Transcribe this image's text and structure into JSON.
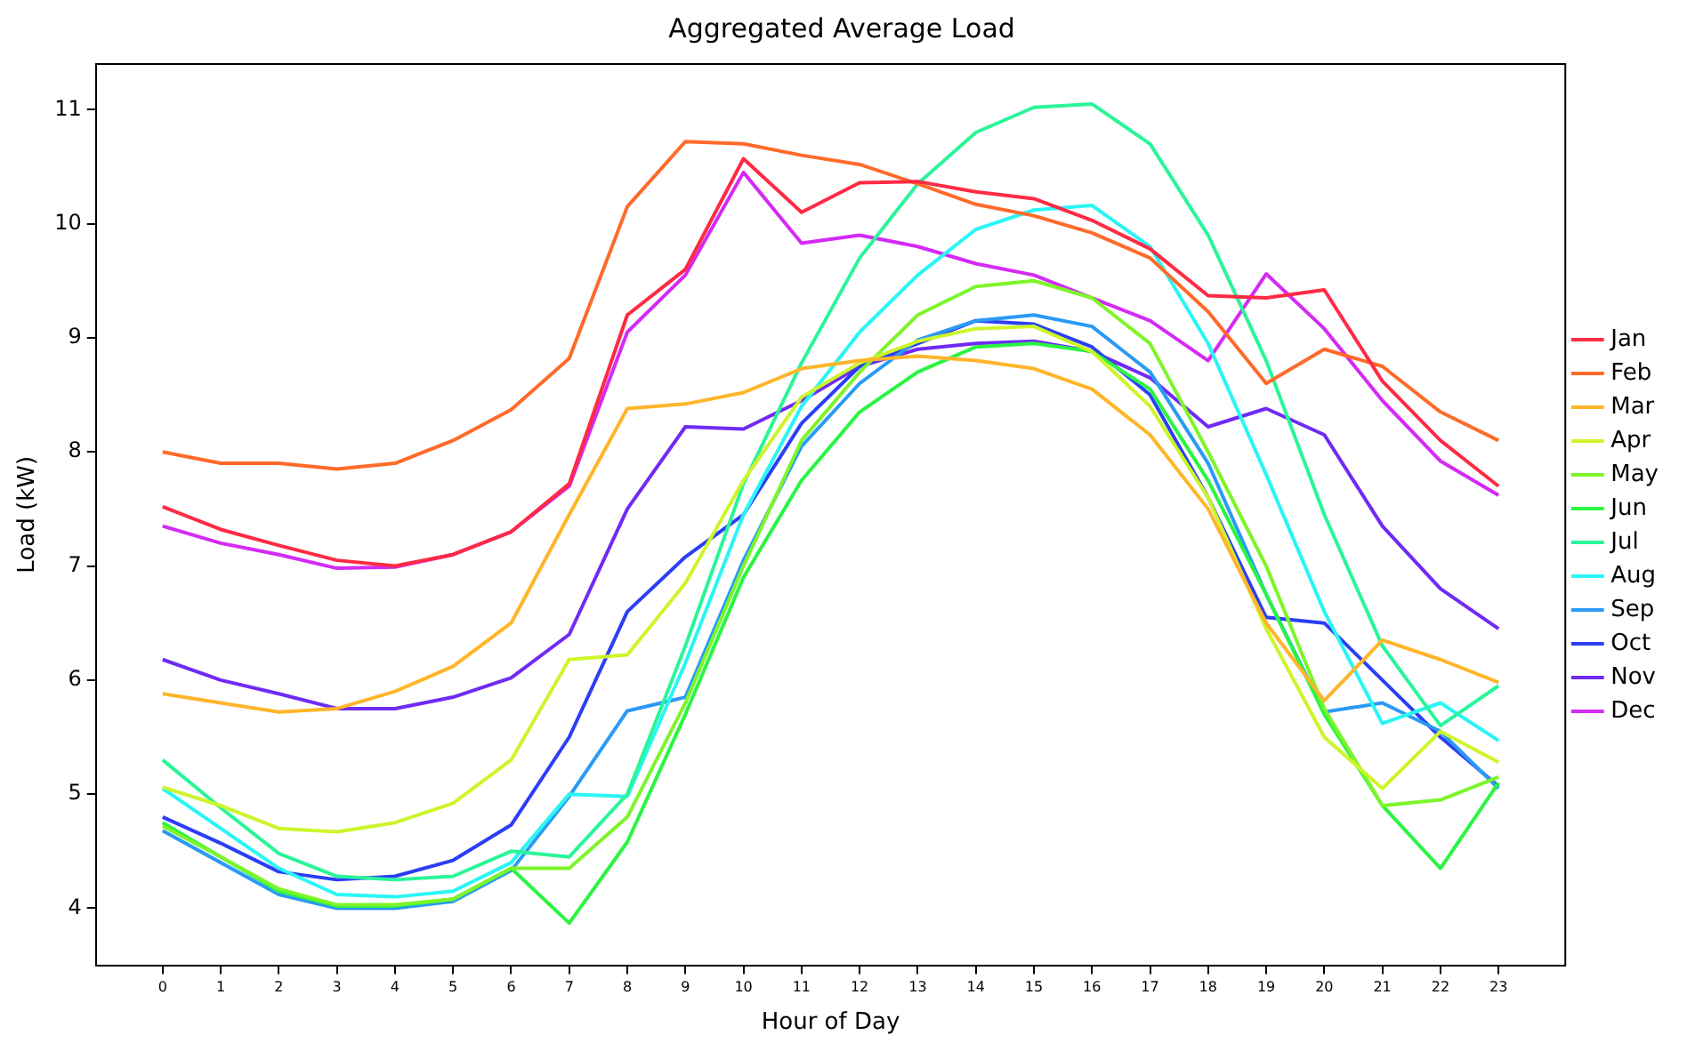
{
  "chart_data": {
    "type": "line",
    "title": "Aggregated Average Load",
    "xlabel": "Hour of Day",
    "ylabel": "Load (kW)",
    "x": [
      0,
      1,
      2,
      3,
      4,
      5,
      6,
      7,
      8,
      9,
      10,
      11,
      12,
      13,
      14,
      15,
      16,
      17,
      18,
      19,
      20,
      21,
      22,
      23
    ],
    "xlim": [
      -1.15,
      24.15
    ],
    "xticks": [
      0,
      1,
      2,
      3,
      4,
      5,
      6,
      7,
      8,
      9,
      10,
      11,
      12,
      13,
      14,
      15,
      16,
      17,
      18,
      19,
      20,
      21,
      22,
      23
    ],
    "ylim": [
      3.5,
      11.4
    ],
    "yticks": [
      4,
      5,
      6,
      7,
      8,
      9,
      10,
      11
    ],
    "grid": false,
    "legend": "right",
    "marker": "none",
    "line_style": "solid",
    "series": [
      {
        "name": "Jan",
        "color": "#ff2a44",
        "values": [
          7.52,
          7.32,
          7.18,
          7.05,
          7.0,
          7.1,
          7.3,
          7.72,
          9.2,
          9.6,
          10.57,
          10.1,
          10.36,
          10.37,
          10.28,
          10.22,
          10.03,
          9.78,
          9.37,
          9.35,
          9.42,
          8.62,
          8.1,
          7.7
        ]
      },
      {
        "name": "Feb",
        "color": "#ff6a2a",
        "values": [
          8.0,
          7.9,
          7.9,
          7.85,
          7.9,
          8.1,
          8.37,
          8.82,
          10.15,
          10.72,
          10.7,
          10.6,
          10.52,
          10.35,
          10.17,
          10.07,
          9.92,
          9.7,
          9.23,
          8.6,
          8.9,
          8.75,
          8.35,
          8.1
        ]
      },
      {
        "name": "Mar",
        "color": "#ffb52a",
        "values": [
          5.88,
          5.8,
          5.72,
          5.75,
          5.9,
          6.12,
          6.5,
          7.45,
          8.38,
          8.42,
          8.52,
          8.73,
          8.8,
          8.84,
          8.8,
          8.73,
          8.55,
          8.15,
          7.5,
          6.5,
          5.82,
          6.35,
          6.18,
          5.98
        ]
      },
      {
        "name": "Apr",
        "color": "#cdf52a",
        "values": [
          5.06,
          4.9,
          4.7,
          4.67,
          4.75,
          4.92,
          5.3,
          6.18,
          6.22,
          6.85,
          7.75,
          8.48,
          8.78,
          8.97,
          9.08,
          9.1,
          8.88,
          8.4,
          7.6,
          6.45,
          5.5,
          5.05,
          5.55,
          5.28
        ]
      },
      {
        "name": "May",
        "color": "#7df52a",
        "values": [
          4.72,
          4.45,
          4.17,
          4.03,
          4.03,
          4.08,
          4.35,
          4.35,
          4.8,
          5.8,
          7.0,
          8.1,
          8.7,
          9.2,
          9.45,
          9.5,
          9.35,
          8.95,
          8.0,
          7.0,
          5.75,
          4.9,
          4.95,
          5.15
        ]
      },
      {
        "name": "Jun",
        "color": "#2af542",
        "values": [
          4.75,
          4.45,
          4.15,
          4.02,
          4.02,
          4.08,
          4.35,
          3.87,
          4.58,
          5.7,
          6.9,
          7.75,
          8.35,
          8.7,
          8.92,
          8.95,
          8.88,
          8.55,
          7.75,
          6.75,
          5.7,
          4.9,
          4.35,
          5.1
        ]
      },
      {
        "name": "Jul",
        "color": "#2af599",
        "values": [
          5.3,
          4.88,
          4.48,
          4.28,
          4.25,
          4.28,
          4.5,
          4.45,
          5.0,
          6.3,
          7.72,
          8.78,
          9.7,
          10.35,
          10.8,
          11.02,
          11.05,
          10.7,
          9.9,
          8.8,
          7.45,
          6.3,
          5.6,
          5.95
        ]
      },
      {
        "name": "Aug",
        "color": "#2af5f5",
        "values": [
          5.05,
          4.7,
          4.35,
          4.12,
          4.1,
          4.15,
          4.4,
          5.0,
          4.98,
          6.15,
          7.45,
          8.4,
          9.05,
          9.55,
          9.95,
          10.12,
          10.16,
          9.8,
          8.95,
          7.8,
          6.6,
          5.62,
          5.8,
          5.47
        ]
      },
      {
        "name": "Sep",
        "color": "#2a9af5",
        "values": [
          4.68,
          4.4,
          4.12,
          4.0,
          4.0,
          4.06,
          4.33,
          4.98,
          5.73,
          5.85,
          7.05,
          8.05,
          8.6,
          8.98,
          9.15,
          9.2,
          9.1,
          8.7,
          7.9,
          6.75,
          5.72,
          5.8,
          5.55,
          5.05
        ]
      },
      {
        "name": "Oct",
        "color": "#2a3ff5",
        "values": [
          4.8,
          4.57,
          4.32,
          4.25,
          4.28,
          4.42,
          4.73,
          5.5,
          6.6,
          7.08,
          7.45,
          8.25,
          8.75,
          8.95,
          9.15,
          9.12,
          8.92,
          8.5,
          7.6,
          6.55,
          6.5,
          6.0,
          5.5,
          5.07
        ]
      },
      {
        "name": "Nov",
        "color": "#702af5",
        "values": [
          6.18,
          6.0,
          5.88,
          5.75,
          5.75,
          5.85,
          6.02,
          6.4,
          7.5,
          8.22,
          8.2,
          8.45,
          8.75,
          8.9,
          8.95,
          8.97,
          8.88,
          8.65,
          8.22,
          8.38,
          8.15,
          7.35,
          6.8,
          6.45
        ]
      },
      {
        "name": "Dec",
        "color": "#d42af5",
        "values": [
          7.35,
          7.2,
          7.1,
          6.98,
          6.99,
          7.1,
          7.3,
          7.7,
          9.05,
          9.55,
          10.45,
          9.83,
          9.9,
          9.8,
          9.65,
          9.55,
          9.35,
          9.15,
          8.8,
          9.56,
          9.08,
          8.45,
          7.92,
          7.62
        ]
      }
    ]
  }
}
